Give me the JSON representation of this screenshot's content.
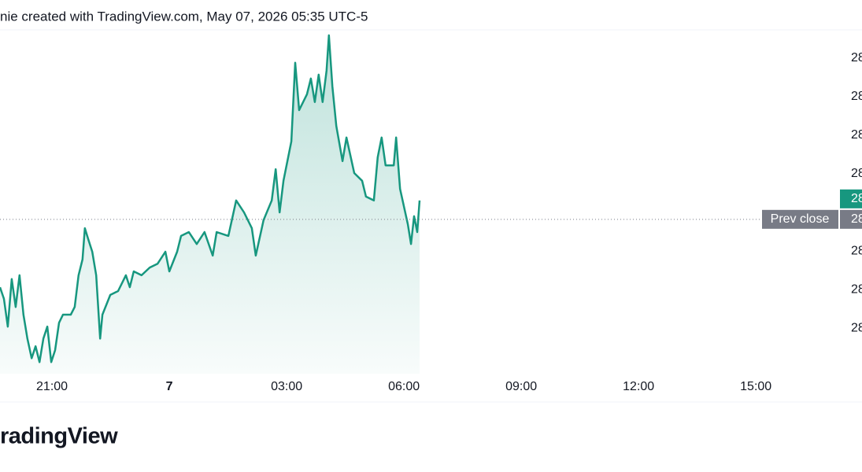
{
  "header": {
    "text": "nie created with TradingView.com, May 07, 2026 05:35 UTC-5"
  },
  "chart_data": {
    "type": "area",
    "color": "#17977f",
    "x": [
      19.67,
      19.77,
      19.87,
      19.97,
      20.07,
      20.17,
      20.27,
      20.37,
      20.48,
      20.58,
      20.68,
      20.78,
      20.88,
      20.98,
      21.08,
      21.18,
      21.28,
      21.48,
      21.58,
      21.68,
      21.78,
      21.84,
      21.93,
      22.03,
      22.13,
      22.23,
      22.29,
      22.49,
      22.69,
      22.89,
      22.99,
      23.09,
      23.29,
      23.5,
      23.7,
      23.9,
      24.0,
      24.2,
      24.3,
      24.5,
      24.7,
      24.9,
      25.11,
      25.21,
      25.51,
      25.71,
      25.91,
      26.11,
      26.21,
      26.41,
      26.62,
      26.72,
      26.82,
      26.92,
      27.12,
      27.22,
      27.32,
      27.52,
      27.62,
      27.72,
      27.82,
      27.92,
      28.02,
      28.08,
      28.17,
      28.27,
      28.43,
      28.53,
      28.73,
      28.93,
      29.03,
      29.23,
      29.33,
      29.43,
      29.53,
      29.74,
      29.8,
      29.9,
      30.1,
      30.18,
      30.26,
      30.34,
      30.4
    ],
    "values": [
      28.106,
      28.076,
      28.004,
      28.127,
      28.055,
      28.137,
      28.035,
      27.973,
      27.922,
      27.953,
      27.912,
      27.973,
      28.004,
      27.912,
      27.943,
      28.014,
      28.035,
      28.035,
      28.055,
      28.137,
      28.178,
      28.259,
      28.229,
      28.198,
      28.137,
      27.973,
      28.035,
      28.086,
      28.096,
      28.137,
      28.106,
      28.147,
      28.137,
      28.157,
      28.167,
      28.198,
      28.147,
      28.198,
      28.239,
      28.249,
      28.218,
      28.249,
      28.188,
      28.249,
      28.239,
      28.331,
      28.3,
      28.259,
      28.188,
      28.28,
      28.331,
      28.412,
      28.3,
      28.382,
      28.484,
      28.688,
      28.565,
      28.606,
      28.647,
      28.586,
      28.657,
      28.586,
      28.667,
      28.759,
      28.627,
      28.524,
      28.433,
      28.494,
      28.402,
      28.382,
      28.341,
      28.331,
      28.443,
      28.494,
      28.422,
      28.422,
      28.494,
      28.361,
      28.269,
      28.218,
      28.29,
      28.249,
      28.331
    ],
    "xlim": [
      19.67,
      41.11
    ],
    "ylim": [
      27.882,
      28.773
    ],
    "xticks": [
      {
        "value": 21,
        "label": "21:00"
      },
      {
        "value": 24,
        "label": "7"
      },
      {
        "value": 27,
        "label": "03:00"
      },
      {
        "value": 30,
        "label": "06:00"
      },
      {
        "value": 33,
        "label": "09:00"
      },
      {
        "value": 36,
        "label": "12:00"
      },
      {
        "value": 39,
        "label": "15:00"
      }
    ],
    "yticks": [
      {
        "value": 28.7,
        "label": "28"
      },
      {
        "value": 28.6,
        "label": "28"
      },
      {
        "value": 28.5,
        "label": "28"
      },
      {
        "value": 28.4,
        "label": "28"
      },
      {
        "value": 28.2,
        "label": "28"
      },
      {
        "value": 28.1,
        "label": "28"
      },
      {
        "value": 28.0,
        "label": "28"
      }
    ],
    "last_price": {
      "value": 28.335,
      "label": "28"
    },
    "prev_close": {
      "value": 28.282,
      "label": "28",
      "title": "Prev close"
    }
  },
  "footer": {
    "logo": "radingView"
  }
}
